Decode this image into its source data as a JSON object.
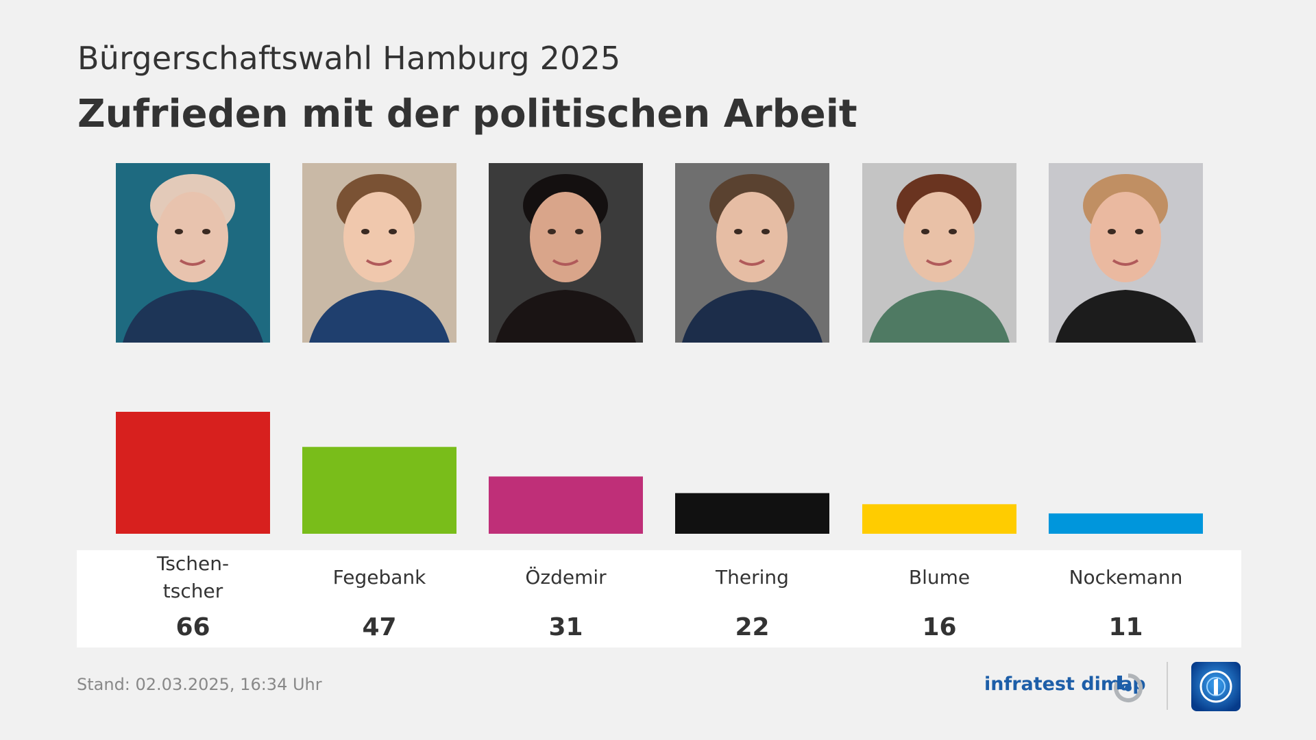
{
  "header": {
    "subtitle": "Bürgerschaftswahl Hamburg 2025",
    "title": "Zufrieden mit der politischen Arbeit"
  },
  "chart_data": {
    "type": "bar",
    "categories": [
      "Tschentscher",
      "Fegebank",
      "Özdemir",
      "Thering",
      "Blume",
      "Nockemann"
    ],
    "labels": [
      [
        "Tschen-",
        "tscher"
      ],
      [
        "Fegebank"
      ],
      [
        "Özdemir"
      ],
      [
        "Thering"
      ],
      [
        "Blume"
      ],
      [
        "Nockemann"
      ]
    ],
    "values": [
      66,
      47,
      31,
      22,
      16,
      11
    ],
    "colors": [
      "#d7201e",
      "#79bd1a",
      "#bf2f78",
      "#111111",
      "#ffcc00",
      "#0096dc"
    ],
    "ylim": [
      0,
      100
    ]
  },
  "footer": {
    "stand": "Stand:  02.03.2025, 16:34 Uhr",
    "brand": "infratest dimap"
  }
}
